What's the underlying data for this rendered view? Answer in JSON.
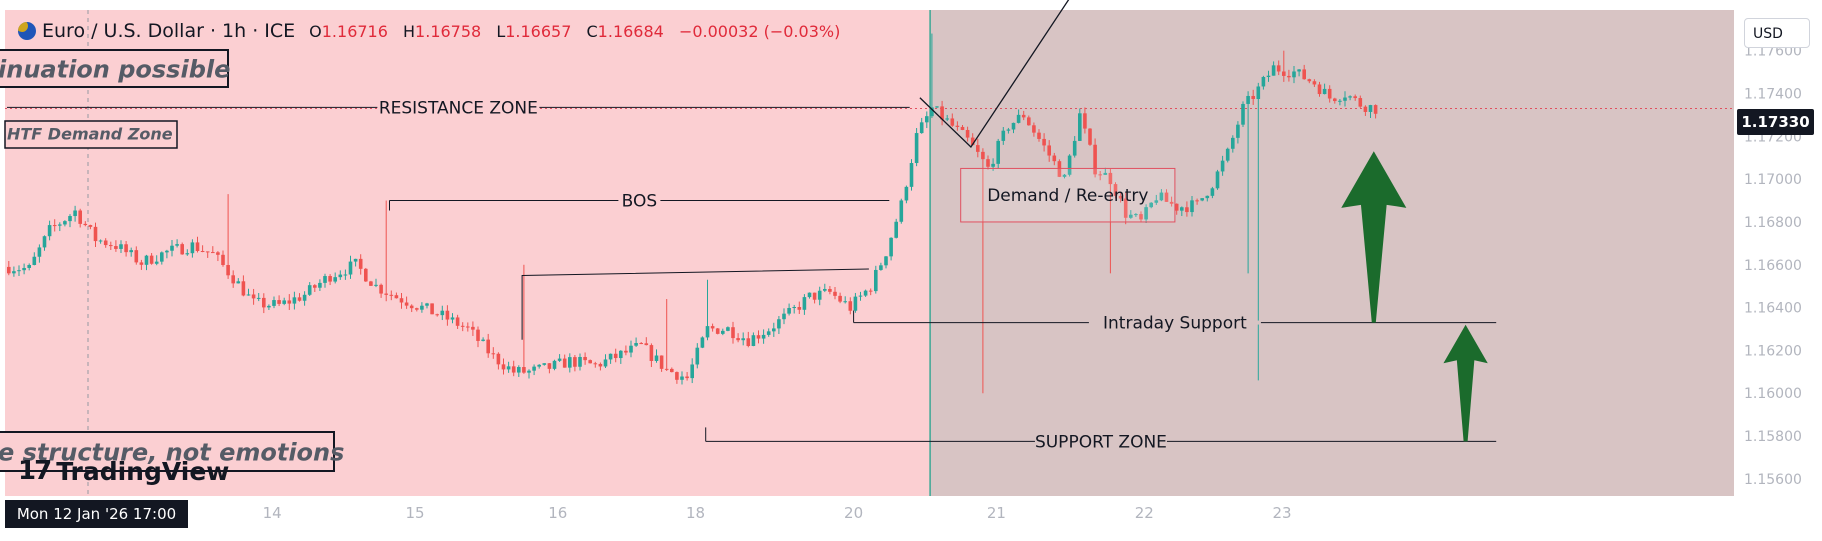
{
  "header": {
    "symbol": "Euro / U.S. Dollar · 1h · ICE",
    "open_label": "O",
    "open": "1.16716",
    "high_label": "H",
    "high": "1.16758",
    "low_label": "L",
    "low": "1.16657",
    "close_label": "C",
    "close": "1.16684",
    "change": "−0.00032 (−0.03%)"
  },
  "currency_button": "USD",
  "current_price": "1.17330",
  "crosshair_time": "Mon 12 Jan '26   17:00",
  "branding": "TradingView",
  "colors": {
    "pink_zone": "#fbcfd2",
    "grey_zone": "#d8c4c4",
    "up_candle": "#26a69a",
    "down_candle": "#ef5350",
    "arrow": "#1b6b2c",
    "vline": "#3aa896"
  },
  "chart_data": {
    "type": "candlestick",
    "y_ticks": [
      "1.17600",
      "1.17400",
      "1.17200",
      "1.17000",
      "1.16800",
      "1.16600",
      "1.16400",
      "1.16200",
      "1.16000",
      "1.15800",
      "1.15600"
    ],
    "y_tick_values": [
      1.176,
      1.174,
      1.172,
      1.17,
      1.168,
      1.166,
      1.164,
      1.162,
      1.16,
      1.158,
      1.156
    ],
    "ylim": [
      1.1552,
      1.1779
    ],
    "x_ticks": [
      "14",
      "15",
      "16",
      "18",
      "20",
      "21",
      "22",
      "23"
    ],
    "x_tick_bars": [
      52,
      80,
      108,
      135,
      166,
      194,
      223,
      250
    ],
    "bar_count": 310,
    "price_path": [
      [
        0,
        1.1659
      ],
      [
        4,
        1.1658
      ],
      [
        8,
        1.1676
      ],
      [
        13,
        1.1685
      ],
      [
        17,
        1.1672
      ],
      [
        21,
        1.1669
      ],
      [
        26,
        1.1661
      ],
      [
        31,
        1.1666
      ],
      [
        36,
        1.1669
      ],
      [
        40,
        1.1665
      ],
      [
        44,
        1.1654
      ],
      [
        48,
        1.1642
      ],
      [
        53,
        1.1641
      ],
      [
        58,
        1.1646
      ],
      [
        63,
        1.1655
      ],
      [
        68,
        1.166
      ],
      [
        72,
        1.165
      ],
      [
        76,
        1.1645
      ],
      [
        80,
        1.1641
      ],
      [
        85,
        1.1636
      ],
      [
        90,
        1.163
      ],
      [
        95,
        1.1617
      ],
      [
        99,
        1.161
      ],
      [
        102,
        1.161
      ],
      [
        106,
        1.1612
      ],
      [
        110,
        1.1615
      ],
      [
        115,
        1.1613
      ],
      [
        119,
        1.1617
      ],
      [
        124,
        1.1622
      ],
      [
        129,
        1.1611
      ],
      [
        133,
        1.1607
      ],
      [
        137,
        1.163
      ],
      [
        141,
        1.163
      ],
      [
        145,
        1.1625
      ],
      [
        149,
        1.163
      ],
      [
        153,
        1.1637
      ],
      [
        157,
        1.1645
      ],
      [
        161,
        1.1647
      ],
      [
        165,
        1.164
      ],
      [
        169,
        1.165
      ],
      [
        172,
        1.1666
      ],
      [
        175,
        1.1688
      ],
      [
        178,
        1.172
      ],
      [
        181,
        1.1733
      ],
      [
        184,
        1.1727
      ],
      [
        188,
        1.1718
      ],
      [
        192,
        1.1705
      ],
      [
        196,
        1.1725
      ],
      [
        199,
        1.173
      ],
      [
        203,
        1.1715
      ],
      [
        207,
        1.17
      ],
      [
        210,
        1.173
      ],
      [
        213,
        1.1705
      ],
      [
        216,
        1.17
      ],
      [
        219,
        1.1684
      ],
      [
        222,
        1.168
      ],
      [
        225,
        1.1692
      ],
      [
        229,
        1.1687
      ],
      [
        233,
        1.1688
      ],
      [
        236,
        1.1698
      ],
      [
        239,
        1.1712
      ],
      [
        242,
        1.1733
      ],
      [
        245,
        1.1742
      ],
      [
        248,
        1.1752
      ],
      [
        252,
        1.175
      ],
      [
        256,
        1.1745
      ],
      [
        259,
        1.1738
      ],
      [
        262,
        1.174
      ],
      [
        265,
        1.1735
      ],
      [
        268,
        1.1733
      ]
    ],
    "spikes": [
      {
        "bar": 43,
        "price": 1.1693
      },
      {
        "bar": 74,
        "price": 1.169
      },
      {
        "bar": 101,
        "price": 1.166
      },
      {
        "bar": 129,
        "price": 1.1644
      },
      {
        "bar": 137,
        "price": 1.1653
      },
      {
        "bar": 181,
        "price": 1.1768
      },
      {
        "bar": 191,
        "price": 1.16
      },
      {
        "bar": 216,
        "price": 1.1656
      },
      {
        "bar": 243,
        "price": 1.1656
      },
      {
        "bar": 245,
        "price": 1.1606
      },
      {
        "bar": 250,
        "price": 1.176
      }
    ],
    "annotations": {
      "resistance": {
        "text": "RESISTANCE ZONE",
        "price": 1.17335,
        "from_bar": 0,
        "to_bar": 177
      },
      "htf_demand": "HTF Demand Zone",
      "bos": {
        "text": "BOS",
        "price": 1.169,
        "from_bar": 75,
        "to_bar": 173
      },
      "demand_reentry": {
        "text": "Demand / Re-entry",
        "price_top": 1.1705,
        "price_bottom": 1.168,
        "from_bar": 187,
        "to_bar": 229
      },
      "intraday_support": {
        "text": "Intraday Support",
        "price": 1.1633,
        "from_bar": 166,
        "to_bar": 292
      },
      "support_zone": {
        "text": "SUPPORT ZONE",
        "price": 1.15775,
        "from_bar": 137,
        "to_bar": 292
      },
      "upper_text": "inuation possible",
      "lower_text": "e structure, not emotions",
      "bos_connector": {
        "from_bar": 101,
        "from_price": 1.1655,
        "to_bar": 169,
        "to_price": 1.1658
      },
      "grey_zone_start_bar": 181,
      "projection": {
        "points": [
          [
            179,
            1.1738
          ],
          [
            189,
            1.1715
          ],
          [
            211,
            1.1794
          ]
        ]
      },
      "up_arrows": [
        {
          "bar": 268,
          "base_price": 1.1633,
          "tip_price": 1.1713
        },
        {
          "bar": 286,
          "base_price": 1.15775,
          "tip_price": 1.1632
        }
      ]
    }
  }
}
